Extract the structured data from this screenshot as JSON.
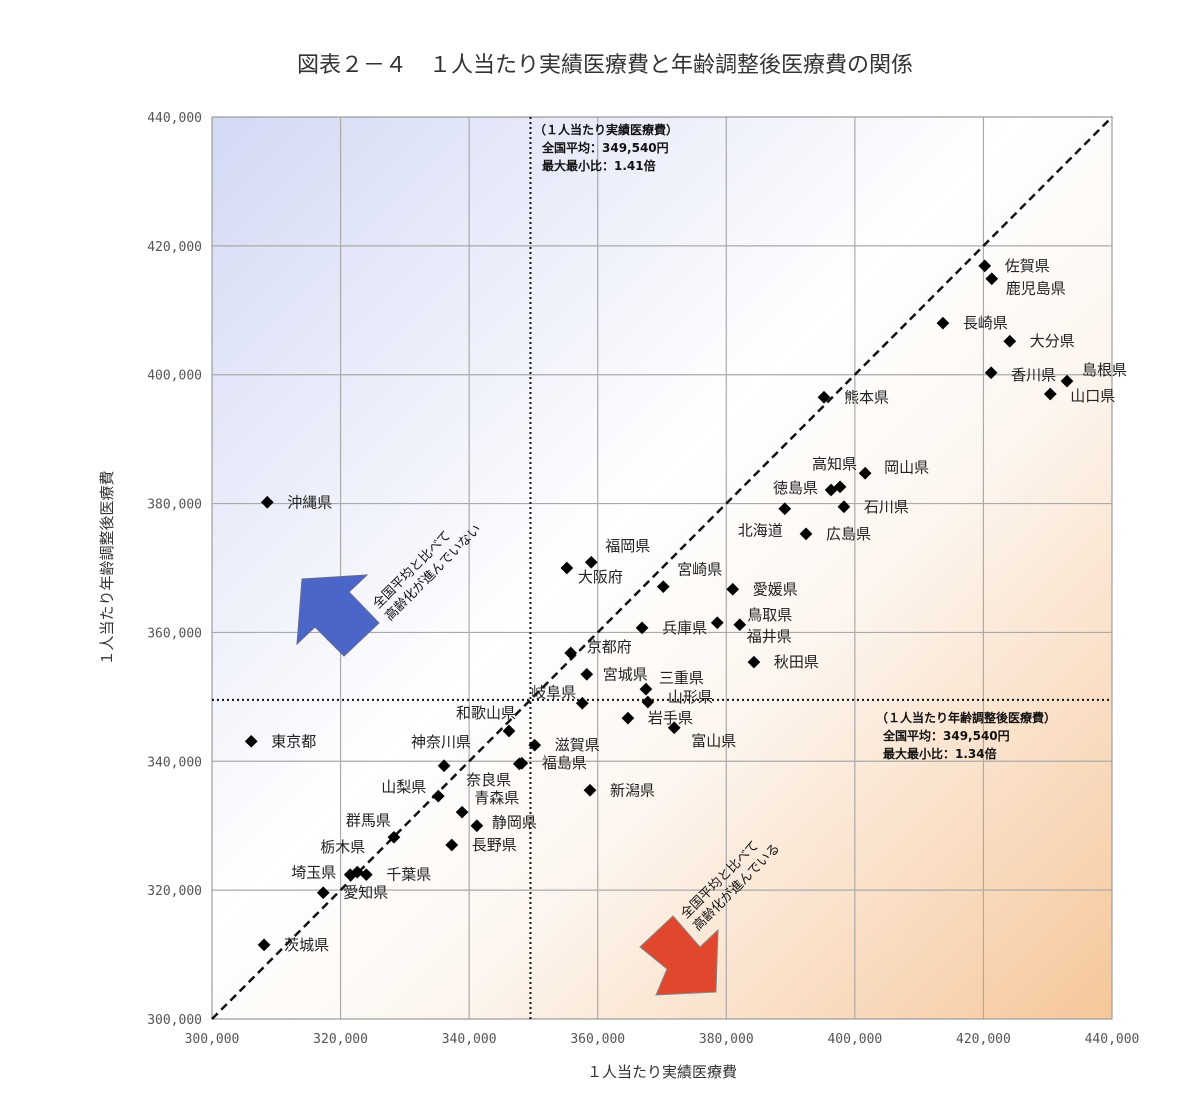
{
  "chart_data": {
    "type": "scatter",
    "title": "図表２－４　１人当たり実績医療費と年齢調整後医療費の関係",
    "xlabel": "１人当たり実績医療費",
    "ylabel": "１人当たり年齢調整後医療費",
    "xlim": [
      300000,
      440000
    ],
    "ylim": [
      300000,
      440000
    ],
    "xticks": [
      300000,
      320000,
      340000,
      360000,
      380000,
      400000,
      420000,
      440000
    ],
    "yticks": [
      300000,
      320000,
      340000,
      360000,
      380000,
      400000,
      420000,
      440000
    ],
    "xtick_labels": [
      "300,000",
      "320,000",
      "340,000",
      "360,000",
      "380,000",
      "400,000",
      "420,000",
      "440,000"
    ],
    "ytick_labels": [
      "300,000",
      "320,000",
      "340,000",
      "360,000",
      "380,000",
      "400,000",
      "420,000",
      "440,000"
    ],
    "grid": true,
    "reference_lines": {
      "diagonal": "y = x",
      "x_average": 349540,
      "y_average": 349540
    },
    "annotations": {
      "x_note": {
        "line1": "（１人当たり実績医療費）",
        "line2": "全国平均：349,540円",
        "line3": "最大最小比：1.41倍"
      },
      "y_note": {
        "line1": "（１人当たり年齢調整後医療費）",
        "line2": "全国平均：349,540円",
        "line3": "最大最小比：1.34倍"
      },
      "upper_arrow": {
        "line1": "全国平均と比べて",
        "line2": "高齢化が進んでいない"
      },
      "lower_arrow": {
        "line1": "全国平均と比べて",
        "line2": "高齢化が進んでいる"
      }
    },
    "colors": {
      "upper_arrow": "#4a66c8",
      "lower_arrow": "#e0472c",
      "bg_top_left": "#d3d9f4",
      "bg_bottom_right": "#f6c79a"
    },
    "points": [
      {
        "name": "佐賀県",
        "x": 420200,
        "y": 416900
      },
      {
        "name": "鹿児島県",
        "x": 421300,
        "y": 414900
      },
      {
        "name": "長崎県",
        "x": 413700,
        "y": 408000
      },
      {
        "name": "大分県",
        "x": 424100,
        "y": 405200
      },
      {
        "name": "香川県",
        "x": 421200,
        "y": 400300
      },
      {
        "name": "島根県",
        "x": 433000,
        "y": 399000
      },
      {
        "name": "山口県",
        "x": 430400,
        "y": 397000
      },
      {
        "name": "熊本県",
        "x": 395200,
        "y": 396500
      },
      {
        "name": "岡山県",
        "x": 401600,
        "y": 384700
      },
      {
        "name": "高知県",
        "x": 397700,
        "y": 382600
      },
      {
        "name": "徳島県",
        "x": 396300,
        "y": 382100
      },
      {
        "name": "石川県",
        "x": 398300,
        "y": 379500
      },
      {
        "name": "北海道",
        "x": 389100,
        "y": 379200
      },
      {
        "name": "広島県",
        "x": 392400,
        "y": 375300
      },
      {
        "name": "沖縄県",
        "x": 308600,
        "y": 380200
      },
      {
        "name": "福岡県",
        "x": 359000,
        "y": 370900
      },
      {
        "name": "大阪府",
        "x": 355200,
        "y": 370000
      },
      {
        "name": "宮崎県",
        "x": 370200,
        "y": 367100
      },
      {
        "name": "愛媛県",
        "x": 381000,
        "y": 366700
      },
      {
        "name": "兵庫県",
        "x": 366900,
        "y": 360700
      },
      {
        "name": "鳥取県",
        "x": 378600,
        "y": 361500
      },
      {
        "name": "福井県",
        "x": 382100,
        "y": 361200
      },
      {
        "name": "秋田県",
        "x": 384300,
        "y": 355400
      },
      {
        "name": "京都府",
        "x": 355800,
        "y": 356800
      },
      {
        "name": "宮城県",
        "x": 358300,
        "y": 353500
      },
      {
        "name": "三重県",
        "x": 367500,
        "y": 351200
      },
      {
        "name": "山形県",
        "x": 367800,
        "y": 349200
      },
      {
        "name": "岐阜県",
        "x": 357600,
        "y": 349000
      },
      {
        "name": "岩手県",
        "x": 364700,
        "y": 346700
      },
      {
        "name": "富山県",
        "x": 371900,
        "y": 345200
      },
      {
        "name": "和歌山県",
        "x": 346200,
        "y": 344700
      },
      {
        "name": "滋賀県",
        "x": 350200,
        "y": 342500
      },
      {
        "name": "東京都",
        "x": 306100,
        "y": 343100
      },
      {
        "name": "福島県",
        "x": 348200,
        "y": 339700
      },
      {
        "name": "青森県",
        "x": 347800,
        "y": 339600
      },
      {
        "name": "新潟県",
        "x": 358800,
        "y": 335500
      },
      {
        "name": "神奈川県",
        "x": 336100,
        "y": 339300
      },
      {
        "name": "山梨県",
        "x": 335200,
        "y": 334600
      },
      {
        "name": "奈良県",
        "x": 338900,
        "y": 332100
      },
      {
        "name": "静岡県",
        "x": 341200,
        "y": 330000
      },
      {
        "name": "長野県",
        "x": 337300,
        "y": 327000
      },
      {
        "name": "群馬県",
        "x": 328300,
        "y": 328200
      },
      {
        "name": "栃木県",
        "x": 322600,
        "y": 322800
      },
      {
        "name": "埼玉県",
        "x": 321500,
        "y": 322400
      },
      {
        "name": "千葉県",
        "x": 324000,
        "y": 322400
      },
      {
        "name": "愛知県",
        "x": 317300,
        "y": 319600
      },
      {
        "name": "茨城県",
        "x": 308100,
        "y": 311500
      }
    ]
  }
}
